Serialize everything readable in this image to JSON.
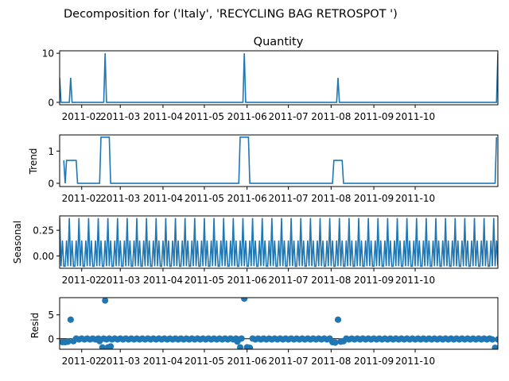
{
  "figure_title": "Decomposition for ('Italy', 'RECYCLING BAG RETROSPOT ')",
  "series_color": "#1f77b4",
  "x_ticks": [
    "2011-02",
    "2011-03",
    "2011-04",
    "2011-05",
    "2011-06",
    "2011-07",
    "2011-08",
    "2011-09",
    "2011-10"
  ],
  "chart_data": [
    {
      "type": "line",
      "title": "Quantity",
      "ylabel": "",
      "ylim": [
        -0.5,
        10.5
      ],
      "yticks": [
        0,
        10
      ],
      "xlim": [
        "2011-01-16",
        "2011-11-30"
      ],
      "x": [
        "2011-01-16",
        "2011-01-17",
        "2011-01-23",
        "2011-01-24",
        "2011-01-25",
        "2011-02-17",
        "2011-02-18",
        "2011-02-19",
        "2011-05-29",
        "2011-05-30",
        "2011-05-31",
        "2011-08-05",
        "2011-08-06",
        "2011-08-07",
        "2011-11-29",
        "2011-11-30"
      ],
      "values": [
        5,
        0,
        0,
        5,
        0,
        0,
        10,
        0,
        0,
        10,
        0,
        0,
        5,
        0,
        0,
        10
      ]
    },
    {
      "type": "line",
      "title": "",
      "ylabel": "Trend",
      "ylim": [
        -0.1,
        1.5
      ],
      "yticks": [
        0,
        1
      ],
      "xlim": [
        "2011-01-16",
        "2011-11-30"
      ],
      "x": [
        "2011-01-19",
        "2011-01-20",
        "2011-01-21",
        "2011-01-28",
        "2011-01-29",
        "2011-02-14",
        "2011-02-15",
        "2011-02-21",
        "2011-02-22",
        "2011-05-26",
        "2011-05-27",
        "2011-06-02",
        "2011-06-03",
        "2011-08-02",
        "2011-08-03",
        "2011-08-09",
        "2011-08-10",
        "2011-11-28",
        "2011-11-29"
      ],
      "values": [
        0.71,
        0,
        0.71,
        0.71,
        0,
        0,
        1.43,
        1.43,
        0,
        0,
        1.43,
        1.43,
        0,
        0,
        0.71,
        0.71,
        0,
        0,
        1.43
      ]
    },
    {
      "type": "line",
      "title": "",
      "ylabel": "Seasonal",
      "ylim": [
        -0.12,
        0.39
      ],
      "yticks": [
        0.25,
        0.0
      ],
      "ytick_labels": [
        "0.25",
        "0.00"
      ],
      "xlim": [
        "2011-01-16",
        "2011-11-30"
      ],
      "period_days": 7,
      "pattern": [
        0.37,
        -0.1,
        0.15,
        -0.1,
        -0.1,
        0.15,
        -0.1
      ]
    },
    {
      "type": "scatter",
      "title": "",
      "ylabel": "Resid",
      "ylim": [
        -2.2,
        8.6
      ],
      "yticks": [
        5,
        0
      ],
      "xlim": [
        "2011-01-16",
        "2011-11-30"
      ],
      "baseline": 0,
      "points": [
        {
          "x": "2011-01-18",
          "y": -0.7
        },
        {
          "x": "2011-01-20",
          "y": -0.7
        },
        {
          "x": "2011-01-22",
          "y": -0.6
        },
        {
          "x": "2011-01-24",
          "y": 4.0
        },
        {
          "x": "2011-01-26",
          "y": -0.5
        },
        {
          "x": "2011-02-14",
          "y": -0.5
        },
        {
          "x": "2011-02-16",
          "y": -1.8
        },
        {
          "x": "2011-02-18",
          "y": 8.0
        },
        {
          "x": "2011-02-20",
          "y": -1.8
        },
        {
          "x": "2011-02-22",
          "y": -1.6
        },
        {
          "x": "2011-05-25",
          "y": -0.6
        },
        {
          "x": "2011-05-27",
          "y": -1.8
        },
        {
          "x": "2011-05-30",
          "y": 8.4
        },
        {
          "x": "2011-06-01",
          "y": -1.8
        },
        {
          "x": "2011-06-03",
          "y": -1.9
        },
        {
          "x": "2011-08-02",
          "y": -0.7
        },
        {
          "x": "2011-08-04",
          "y": -0.8
        },
        {
          "x": "2011-08-06",
          "y": 4.0
        },
        {
          "x": "2011-08-08",
          "y": -0.6
        },
        {
          "x": "2011-08-10",
          "y": -0.5
        },
        {
          "x": "2011-11-28",
          "y": -1.9
        }
      ]
    }
  ]
}
